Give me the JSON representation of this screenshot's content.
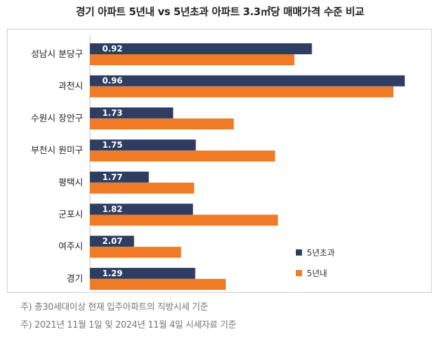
{
  "title": "경기 아파트 5년내 vs 5년초과 아파트 3.3㎡당 매매가격 수준 비교",
  "notes": [
    "주) 총30세대이상 현재 입주아파트의 직방시세 기준",
    "주) 2021년 11월 1일 및 2024년 11월 4일 시세자료 기준"
  ],
  "colors": {
    "over5": "#2e3e62",
    "within5": "#f07b26",
    "label": "#ffffff"
  },
  "chart_data": {
    "type": "bar",
    "orientation": "horizontal",
    "categories": [
      "성남시 분당구",
      "과천시",
      "수원시 장안구",
      "부천시 원미구",
      "평택시",
      "군포시",
      "여주시",
      "경기"
    ],
    "ratio_labels": [
      "0.92",
      "0.96",
      "1.73",
      "1.75",
      "1.77",
      "1.82",
      "2.07",
      "1.29"
    ],
    "series": [
      {
        "name": "5년초과",
        "color": "#2e3e62",
        "values": [
          3920,
          5560,
          1470,
          1870,
          1040,
          1820,
          780,
          1860
        ]
      },
      {
        "name": "5년내",
        "color": "#f07b26",
        "values": [
          3610,
          5360,
          2540,
          3270,
          1840,
          3320,
          1610,
          2400
        ]
      }
    ],
    "xlim": [
      0,
      5600
    ],
    "legend_position": "bottom-right",
    "grid": false
  }
}
